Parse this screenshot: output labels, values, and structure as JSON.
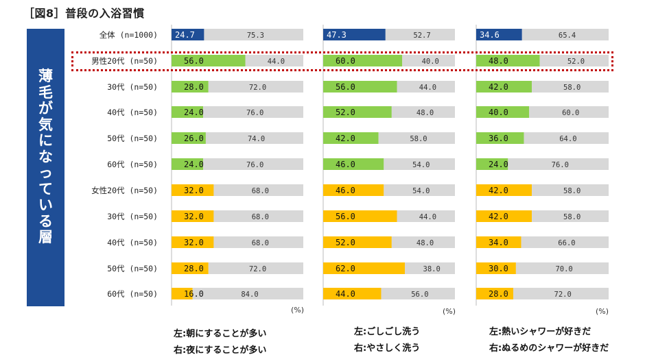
{
  "title": "［図8］普段の入浴習慣",
  "side_label": "薄毛が気になっている層",
  "colors": {
    "all": "#1f4e96",
    "male": "#8ccf4d",
    "female": "#ffc000",
    "rest": "#d8d8d8",
    "side": "#1f4e96",
    "highlight": "#c00000"
  },
  "chart_data": {
    "type": "bar",
    "stacked": true,
    "orientation": "horizontal",
    "unit": "(%)",
    "categories": [
      "全体 (n=1000)",
      "男性20代 (n=50)",
      "30代 (n=50)",
      "40代 (n=50)",
      "50代 (n=50)",
      "60代 (n=50)",
      "女性20代 (n=50)",
      "30代 (n=50)",
      "40代 (n=50)",
      "50代 (n=50)",
      "60代 (n=50)"
    ],
    "groups": [
      "all",
      "male",
      "male",
      "male",
      "male",
      "male",
      "female",
      "female",
      "female",
      "female",
      "female"
    ],
    "highlight_row": 1,
    "panels": [
      {
        "left_values": [
          "24.7",
          "56.0",
          "28.0",
          "24.0",
          "26.0",
          "24.0",
          "32.0",
          "32.0",
          "32.0",
          "28.0",
          "16.0"
        ],
        "right_values": [
          "75.3",
          "44.0",
          "72.0",
          "76.0",
          "74.0",
          "76.0",
          "68.0",
          "68.0",
          "68.0",
          "72.0",
          "84.0"
        ],
        "legend_left": "左:朝にすることが多い",
        "legend_right": "右:夜にすることが多い"
      },
      {
        "left_values": [
          "47.3",
          "60.0",
          "56.0",
          "52.0",
          "42.0",
          "46.0",
          "46.0",
          "56.0",
          "52.0",
          "62.0",
          "44.0"
        ],
        "right_values": [
          "52.7",
          "40.0",
          "44.0",
          "48.0",
          "58.0",
          "54.0",
          "54.0",
          "44.0",
          "48.0",
          "38.0",
          "56.0"
        ],
        "legend_left": "左:ごしごし洗う",
        "legend_right": "右:やさしく洗う"
      },
      {
        "left_values": [
          "34.6",
          "48.0",
          "42.0",
          "40.0",
          "36.0",
          "24.0",
          "42.0",
          "42.0",
          "34.0",
          "30.0",
          "28.0"
        ],
        "right_values": [
          "65.4",
          "52.0",
          "58.0",
          "60.0",
          "64.0",
          "76.0",
          "58.0",
          "58.0",
          "66.0",
          "70.0",
          "72.0"
        ],
        "legend_left": "左:熱いシャワーが好きだ",
        "legend_right": "右:ぬるめのシャワーが好きだ"
      }
    ]
  }
}
